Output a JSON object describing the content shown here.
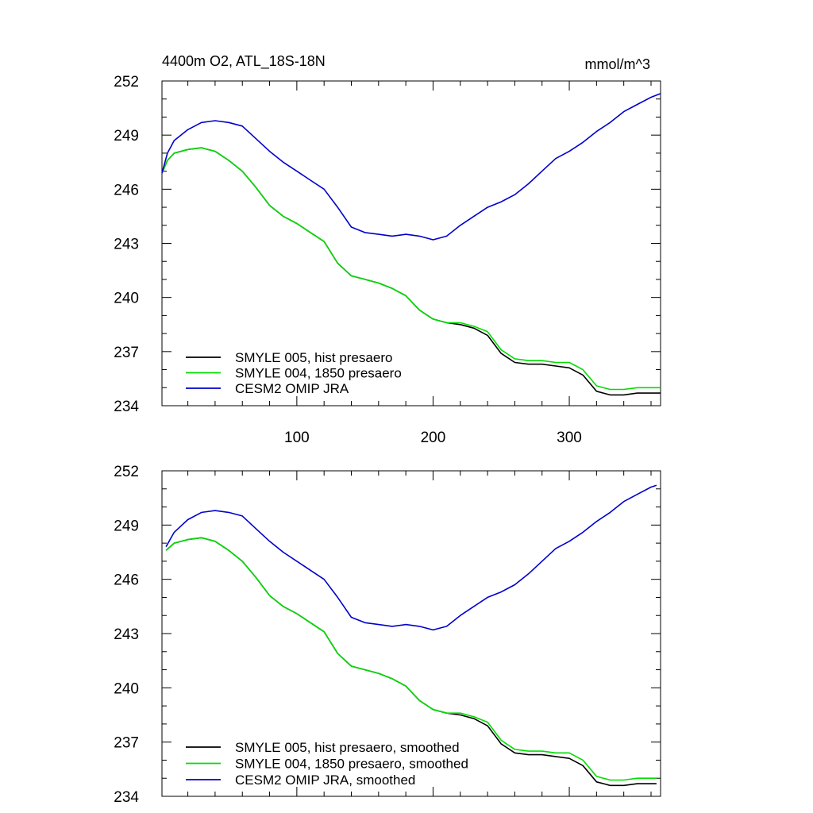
{
  "chart_data": [
    {
      "type": "line",
      "title": "4400m O2, ATL_18S-18N",
      "units": "mmol/m^3",
      "xlim": [
        1,
        367
      ],
      "ylim": [
        234,
        252
      ],
      "x_ticks": [
        100,
        200,
        300
      ],
      "y_ticks": [
        234,
        237,
        240,
        243,
        246,
        249,
        252
      ],
      "x_tick_labels_shown": true,
      "grid": false,
      "legend_position": "bottom-left",
      "series": [
        {
          "name": "SMYLE 005, hist presaero",
          "color": "#000000",
          "x": [
            1,
            5,
            10,
            20,
            30,
            40,
            50,
            60,
            70,
            80,
            90,
            100,
            110,
            120,
            130,
            140,
            150,
            160,
            170,
            180,
            190,
            200,
            210,
            220,
            230,
            240,
            250,
            260,
            270,
            280,
            290,
            300,
            310,
            320,
            330,
            340,
            350,
            360,
            367
          ],
          "y": [
            246.9,
            247.6,
            248.0,
            248.2,
            248.3,
            248.1,
            247.6,
            247.0,
            246.1,
            245.1,
            244.5,
            244.1,
            243.6,
            243.1,
            241.9,
            241.2,
            241.0,
            240.8,
            240.5,
            240.1,
            239.3,
            238.8,
            238.6,
            238.5,
            238.3,
            237.9,
            236.9,
            236.4,
            236.3,
            236.3,
            236.2,
            236.1,
            235.7,
            234.8,
            234.6,
            234.6,
            234.7,
            234.7,
            234.7
          ]
        },
        {
          "name": "SMYLE 004, 1850 presaero",
          "color": "#00dd00",
          "x": [
            1,
            5,
            10,
            20,
            30,
            40,
            50,
            60,
            70,
            80,
            90,
            100,
            110,
            120,
            130,
            140,
            150,
            160,
            170,
            180,
            190,
            200,
            210,
            220,
            230,
            240,
            250,
            260,
            270,
            280,
            290,
            300,
            310,
            320,
            330,
            340,
            350,
            360,
            367
          ],
          "y": [
            246.9,
            247.6,
            248.0,
            248.2,
            248.3,
            248.1,
            247.6,
            247.0,
            246.1,
            245.1,
            244.5,
            244.1,
            243.6,
            243.1,
            241.9,
            241.2,
            241.0,
            240.8,
            240.5,
            240.1,
            239.3,
            238.8,
            238.6,
            238.6,
            238.4,
            238.1,
            237.1,
            236.6,
            236.5,
            236.5,
            236.4,
            236.4,
            236.0,
            235.1,
            234.9,
            234.9,
            235.0,
            235.0,
            235.0
          ]
        },
        {
          "name": "CESM2 OMIP JRA",
          "color": "#0000cc",
          "x": [
            1,
            5,
            10,
            20,
            30,
            40,
            50,
            60,
            70,
            80,
            90,
            100,
            110,
            120,
            130,
            140,
            150,
            160,
            170,
            180,
            190,
            200,
            210,
            220,
            230,
            240,
            250,
            260,
            270,
            280,
            290,
            300,
            310,
            320,
            330,
            340,
            350,
            360,
            367
          ],
          "y": [
            246.9,
            248.0,
            248.7,
            249.3,
            249.7,
            249.8,
            249.7,
            249.5,
            248.8,
            248.1,
            247.5,
            247.0,
            246.5,
            246.0,
            245.0,
            243.9,
            243.6,
            243.5,
            243.4,
            243.5,
            243.4,
            243.2,
            243.4,
            244.0,
            244.5,
            245.0,
            245.3,
            245.7,
            246.3,
            247.0,
            247.7,
            248.1,
            248.6,
            249.2,
            249.7,
            250.3,
            250.7,
            251.1,
            251.3
          ]
        }
      ]
    },
    {
      "type": "line",
      "xlim": [
        1,
        367
      ],
      "ylim": [
        234,
        252
      ],
      "x_ticks": [
        100,
        200,
        300
      ],
      "y_ticks": [
        234,
        237,
        240,
        243,
        246,
        249,
        252
      ],
      "x_tick_labels_shown": false,
      "grid": false,
      "legend_position": "bottom-left",
      "series": [
        {
          "name": "SMYLE 005, hist presaero, smoothed",
          "color": "#000000",
          "x": [
            4,
            10,
            20,
            30,
            40,
            50,
            60,
            70,
            80,
            90,
            100,
            110,
            120,
            130,
            140,
            150,
            160,
            170,
            180,
            190,
            200,
            210,
            220,
            230,
            240,
            250,
            260,
            270,
            280,
            290,
            300,
            310,
            320,
            330,
            340,
            350,
            360,
            364
          ],
          "y": [
            247.6,
            248.0,
            248.2,
            248.3,
            248.1,
            247.6,
            247.0,
            246.1,
            245.1,
            244.5,
            244.1,
            243.6,
            243.1,
            241.9,
            241.2,
            241.0,
            240.8,
            240.5,
            240.1,
            239.3,
            238.8,
            238.6,
            238.5,
            238.3,
            237.9,
            236.9,
            236.4,
            236.3,
            236.3,
            236.2,
            236.1,
            235.7,
            234.8,
            234.6,
            234.6,
            234.7,
            234.7,
            234.7
          ]
        },
        {
          "name": "SMYLE 004, 1850 presaero, smoothed",
          "color": "#00dd00",
          "x": [
            4,
            10,
            20,
            30,
            40,
            50,
            60,
            70,
            80,
            90,
            100,
            110,
            120,
            130,
            140,
            150,
            160,
            170,
            180,
            190,
            200,
            210,
            220,
            230,
            240,
            250,
            260,
            270,
            280,
            290,
            300,
            310,
            320,
            330,
            340,
            350,
            360,
            364
          ],
          "y": [
            247.6,
            248.0,
            248.2,
            248.3,
            248.1,
            247.6,
            247.0,
            246.1,
            245.1,
            244.5,
            244.1,
            243.6,
            243.1,
            241.9,
            241.2,
            241.0,
            240.8,
            240.5,
            240.1,
            239.3,
            238.8,
            238.6,
            238.6,
            238.4,
            238.1,
            237.1,
            236.6,
            236.5,
            236.5,
            236.4,
            236.4,
            236.0,
            235.1,
            234.9,
            234.9,
            235.0,
            235.0,
            235.0
          ]
        },
        {
          "name": "CESM2 OMIP JRA, smoothed",
          "color": "#0000cc",
          "x": [
            4,
            10,
            20,
            30,
            40,
            50,
            60,
            70,
            80,
            90,
            100,
            110,
            120,
            130,
            140,
            150,
            160,
            170,
            180,
            190,
            200,
            210,
            220,
            230,
            240,
            250,
            260,
            270,
            280,
            290,
            300,
            310,
            320,
            330,
            340,
            350,
            360,
            364
          ],
          "y": [
            247.8,
            248.6,
            249.3,
            249.7,
            249.8,
            249.7,
            249.5,
            248.8,
            248.1,
            247.5,
            247.0,
            246.5,
            246.0,
            245.0,
            243.9,
            243.6,
            243.5,
            243.4,
            243.5,
            243.4,
            243.2,
            243.4,
            244.0,
            244.5,
            245.0,
            245.3,
            245.7,
            246.3,
            247.0,
            247.7,
            248.1,
            248.6,
            249.2,
            249.7,
            250.3,
            250.7,
            251.1,
            251.2
          ]
        }
      ]
    }
  ]
}
